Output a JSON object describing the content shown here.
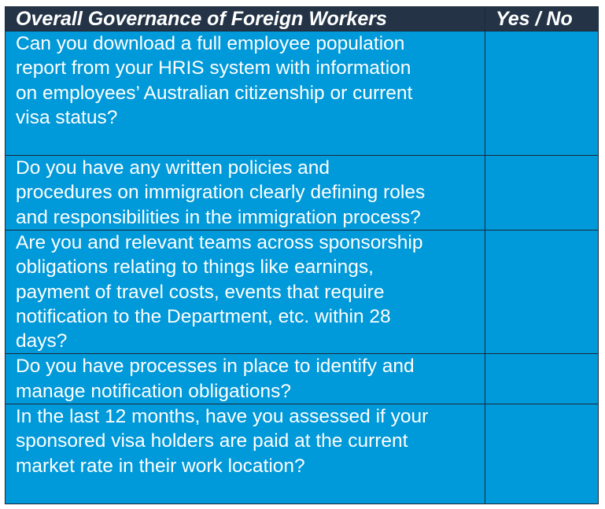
{
  "header": {
    "question_col": "Overall Governance of Foreign Workers",
    "answer_col": "Yes / No"
  },
  "colors": {
    "header_bg": "#243446",
    "cell_bg": "#0099d9",
    "text": "#ffffff"
  },
  "rows": [
    {
      "lines": [
        "Can you download a full employee population",
        "report from your HRIS system with information",
        "on employees’ Australian citizenship or current",
        "visa status?"
      ],
      "answer": ""
    },
    {
      "lines": [
        "Do you have any written policies and",
        "procedures on immigration clearly defining roles",
        "and responsibilities in the immigration process?"
      ],
      "answer": ""
    },
    {
      "lines": [
        "Are you and relevant teams across sponsorship",
        "obligations relating to things like earnings,",
        "payment of travel costs, events that require",
        "notification to the Department, etc. within 28",
        "days?"
      ],
      "answer": ""
    },
    {
      "lines": [
        "Do you have processes in place to identify and",
        "manage notification obligations?"
      ],
      "answer": ""
    },
    {
      "lines": [
        "In the last 12 months, have you assessed if your",
        "sponsored visa holders are paid at the current",
        "market rate in their work location?"
      ],
      "answer": ""
    }
  ]
}
